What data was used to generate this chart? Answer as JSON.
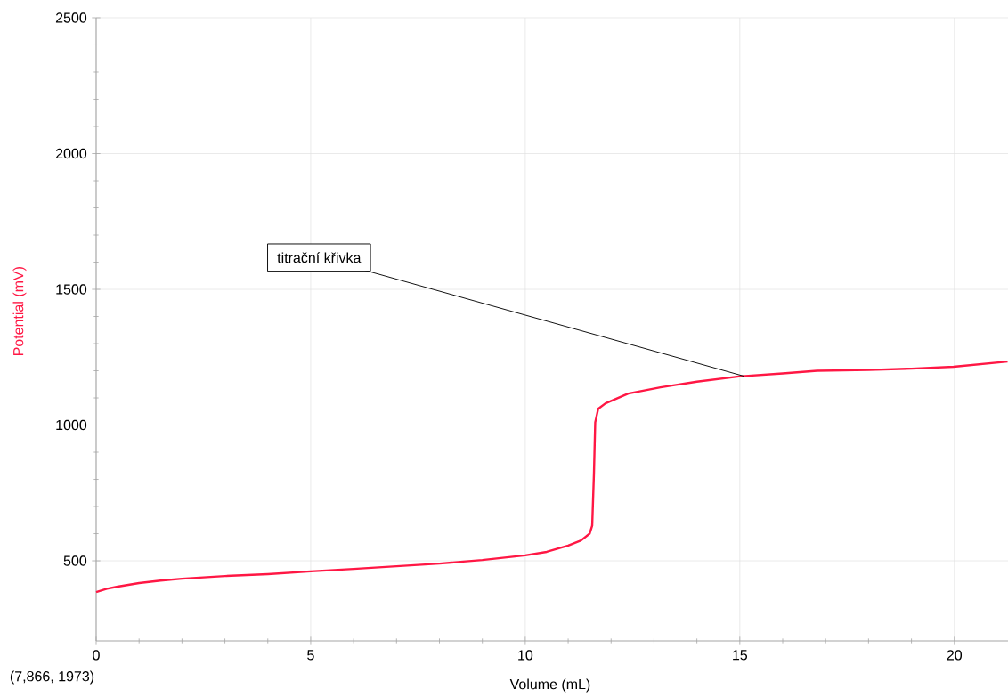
{
  "chart_data": {
    "type": "line",
    "xlabel": "Volume (mL)",
    "ylabel": "Potential (mV)",
    "x": [
      0,
      0.25,
      0.5,
      1,
      1.5,
      2,
      3,
      4,
      5,
      6,
      7,
      8,
      9,
      10,
      10.5,
      11,
      11.3,
      11.5,
      11.56,
      11.6,
      11.63,
      11.7,
      11.87,
      12.4,
      13.15,
      14,
      14.98,
      16,
      16.8,
      18,
      19,
      19.98,
      21.24
    ],
    "series": [
      {
        "color": "#ff1744",
        "values": [
          385,
          397,
          405,
          418,
          427,
          434,
          444,
          451,
          461,
          470,
          480,
          490,
          503,
          520,
          533,
          556,
          575,
          600,
          630,
          820,
          1010,
          1060,
          1080,
          1116,
          1139,
          1160,
          1179,
          1190,
          1200,
          1203,
          1208,
          1215,
          1234
        ]
      }
    ],
    "xlim": [
      0,
      21.25
    ],
    "ylim": [
      205,
      2500
    ],
    "xticks": [
      0,
      5,
      10,
      15,
      20
    ],
    "yticks": [
      500,
      1000,
      1500,
      2000,
      2500
    ],
    "grid": true,
    "line_style": "solid",
    "marker": "none",
    "annotations": [
      {
        "text": "titrační křivka",
        "x": 15.1,
        "y": 1180
      },
      "(7,866, 1973)"
    ]
  }
}
